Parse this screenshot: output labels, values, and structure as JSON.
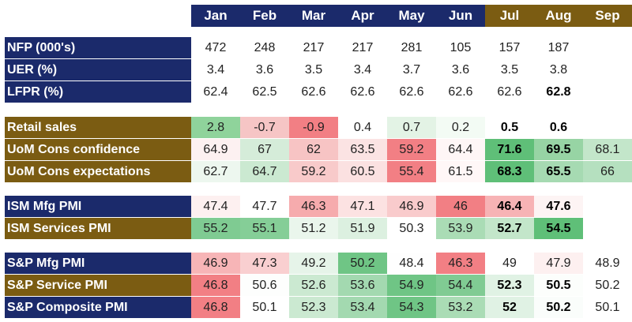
{
  "months": [
    "Jan",
    "Feb",
    "Mar",
    "Apr",
    "May",
    "Jun",
    "Jul",
    "Aug",
    "Sep"
  ],
  "month_colors": [
    "navy",
    "navy",
    "navy",
    "navy",
    "navy",
    "navy",
    "gold",
    "gold",
    "gold"
  ],
  "groups": [
    [
      {
        "label": "NFP (000's)",
        "color": "navy",
        "values": [
          "472",
          "248",
          "217",
          "217",
          "281",
          "105",
          "157",
          "187",
          ""
        ],
        "fills": [
          "",
          "",
          "",
          "",
          "",
          "",
          "",
          "",
          ""
        ],
        "bold": [
          false,
          false,
          false,
          false,
          false,
          false,
          false,
          false,
          false
        ]
      },
      {
        "label": "UER (%)",
        "color": "navy",
        "values": [
          "3.4",
          "3.6",
          "3.5",
          "3.4",
          "3.7",
          "3.6",
          "3.5",
          "3.8",
          ""
        ],
        "fills": [
          "",
          "",
          "",
          "",
          "",
          "",
          "",
          "",
          ""
        ],
        "bold": [
          false,
          false,
          false,
          false,
          false,
          false,
          false,
          false,
          false
        ]
      },
      {
        "label": "LFPR (%)",
        "color": "navy",
        "values": [
          "62.4",
          "62.5",
          "62.6",
          "62.6",
          "62.6",
          "62.6",
          "62.6",
          "62.8",
          ""
        ],
        "fills": [
          "",
          "",
          "",
          "",
          "",
          "",
          "",
          "",
          ""
        ],
        "bold": [
          false,
          false,
          false,
          false,
          false,
          false,
          false,
          true,
          false
        ]
      }
    ],
    [
      {
        "label": "Retail sales",
        "color": "gold",
        "values": [
          "2.8",
          "-0.7",
          "-0.9",
          "0.4",
          "0.7",
          "0.2",
          "0.5",
          "0.6",
          ""
        ],
        "fills": [
          "#8fd39b",
          "#f6c5c5",
          "#f27f84",
          "#ffffff",
          "#e3f3e5",
          "#f3fbf4",
          "",
          "",
          ""
        ],
        "bold": [
          false,
          false,
          false,
          false,
          false,
          false,
          true,
          true,
          false
        ]
      },
      {
        "label": "UoM Cons confidence",
        "color": "gold",
        "values": [
          "64.9",
          "67",
          "62",
          "63.5",
          "59.2",
          "64.4",
          "71.6",
          "69.5",
          "68.1"
        ],
        "fills": [
          "#fdf1f1",
          "#d5ecd9",
          "#f7c4c4",
          "#fbe3e3",
          "#f27f84",
          "#fef6f6",
          "#5fbf78",
          "#97d4a4",
          "#c3e6ca"
        ],
        "bold": [
          false,
          false,
          false,
          false,
          false,
          false,
          true,
          true,
          false
        ]
      },
      {
        "label": "UoM Cons expectations",
        "color": "gold",
        "values": [
          "62.7",
          "64.7",
          "59.2",
          "60.5",
          "55.4",
          "61.5",
          "68.3",
          "65.5",
          "66"
        ],
        "fills": [
          "#edf7ef",
          "#cbe9d1",
          "#f8caca",
          "#fbe1e1",
          "#f27f84",
          "#fff7f7",
          "#5fbf78",
          "#a6dab2",
          "#b5e0bf"
        ],
        "bold": [
          false,
          false,
          false,
          false,
          false,
          false,
          true,
          true,
          false
        ]
      }
    ],
    [
      {
        "label": "ISM Mfg PMI",
        "color": "navy",
        "values": [
          "47.4",
          "47.7",
          "46.3",
          "47.1",
          "46.9",
          "46",
          "46.4",
          "47.6",
          ""
        ],
        "fills": [
          "#fdf0f0",
          "#ffffff",
          "#f6abad",
          "#fce2e2",
          "#f9cbcc",
          "#f27f84",
          "#f7b3b5",
          "#fdf4f4",
          ""
        ],
        "bold": [
          false,
          false,
          false,
          false,
          false,
          false,
          true,
          true,
          false
        ]
      },
      {
        "label": "ISM Services PMI",
        "color": "gold",
        "values": [
          "55.2",
          "55.1",
          "51.2",
          "51.9",
          "50.3",
          "53.9",
          "52.7",
          "54.5",
          ""
        ],
        "fills": [
          "#7fcb92",
          "#85ce97",
          "#eaf6ec",
          "#dcf0e0",
          "#ffffff",
          "#aadcb5",
          "#c3e6ca",
          "#5fbf78",
          ""
        ],
        "bold": [
          false,
          false,
          false,
          false,
          false,
          false,
          true,
          true,
          false
        ]
      }
    ],
    [
      {
        "label": "S&P Mfg PMI",
        "color": "navy",
        "values": [
          "46.9",
          "47.3",
          "49.2",
          "50.2",
          "48.4",
          "46.3",
          "49",
          "47.9",
          "48.9"
        ],
        "fills": [
          "#f7b5b7",
          "#f9cfd0",
          "#e6f4e9",
          "#6fc585",
          "#fefefe",
          "#f27f84",
          "#ffffff",
          "#fdf0f0",
          "#ffffff"
        ],
        "bold": [
          false,
          false,
          false,
          false,
          false,
          false,
          false,
          false,
          false
        ]
      },
      {
        "label": "S&P Service PMI",
        "color": "gold",
        "values": [
          "46.8",
          "50.6",
          "52.6",
          "53.6",
          "54.9",
          "54.4",
          "52.3",
          "50.5",
          "50.2"
        ],
        "fills": [
          "#f27f84",
          "#fdfefd",
          "#cbe9d1",
          "#a3d9b0",
          "#6fc585",
          "#80cb93",
          "#e0f2e4",
          "#fcfefc",
          "#ffffff"
        ],
        "bold": [
          false,
          false,
          false,
          false,
          false,
          false,
          true,
          true,
          false
        ]
      },
      {
        "label": "S&P Composite PMI",
        "color": "navy",
        "values": [
          "46.8",
          "50.1",
          "52.3",
          "53.4",
          "54.3",
          "53.2",
          "52",
          "50.2",
          "50.1"
        ],
        "fills": [
          "#f27f84",
          "#ffffff",
          "#cbe9d1",
          "#a3d9b0",
          "#6fc585",
          "#aadcb5",
          "#e0f2e4",
          "#fafdfb",
          "#ffffff"
        ],
        "bold": [
          false,
          false,
          false,
          false,
          false,
          false,
          true,
          true,
          false
        ]
      }
    ]
  ]
}
